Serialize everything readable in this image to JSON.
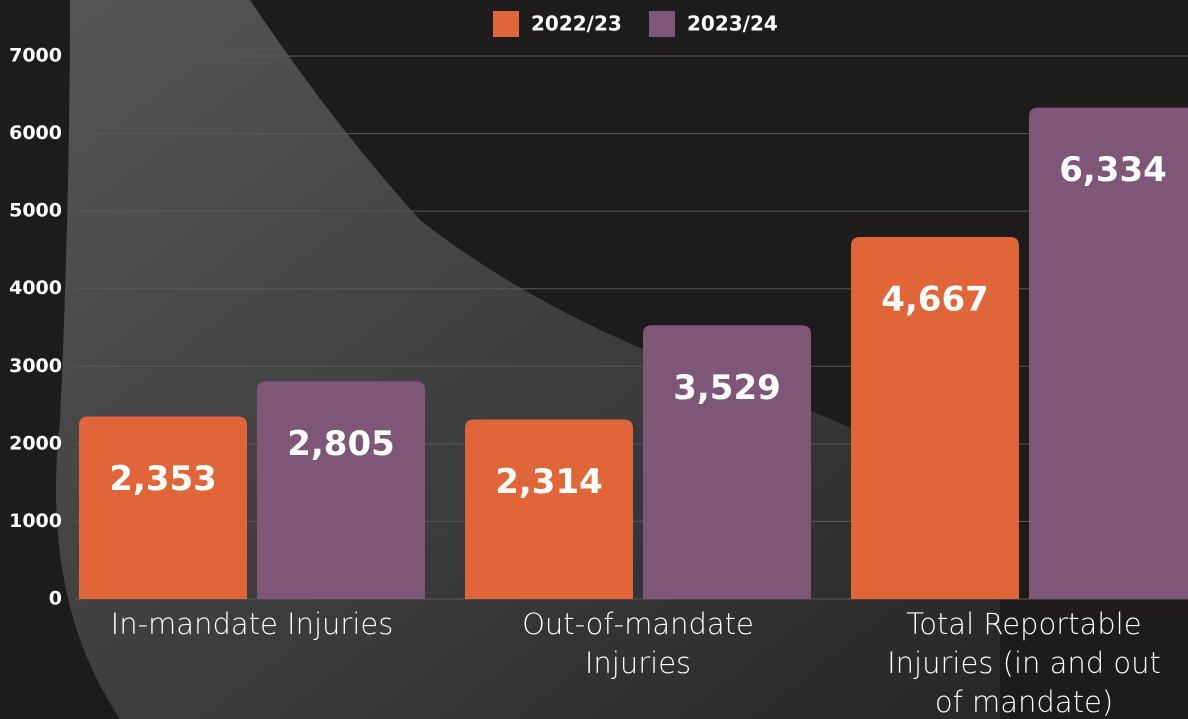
{
  "chart_data": {
    "type": "bar",
    "categories": [
      "In-mandate Injuries",
      "Out-of-mandate Injuries",
      "Total Reportable Injuries (in and out of mandate)"
    ],
    "series": [
      {
        "name": "2022/23",
        "color": "#e0663a",
        "values": [
          2353,
          2314,
          4667
        ],
        "value_labels": [
          "2,353",
          "2,314",
          "4,667"
        ]
      },
      {
        "name": "2023/24",
        "color": "#7e5678",
        "values": [
          2805,
          3529,
          6334
        ],
        "value_labels": [
          "2,805",
          "3,529",
          "6,334"
        ]
      }
    ],
    "ylim": [
      0,
      7000
    ],
    "yticks": [
      0,
      1000,
      2000,
      3000,
      4000,
      5000,
      6000,
      7000
    ],
    "grid": true,
    "legend": "top"
  }
}
